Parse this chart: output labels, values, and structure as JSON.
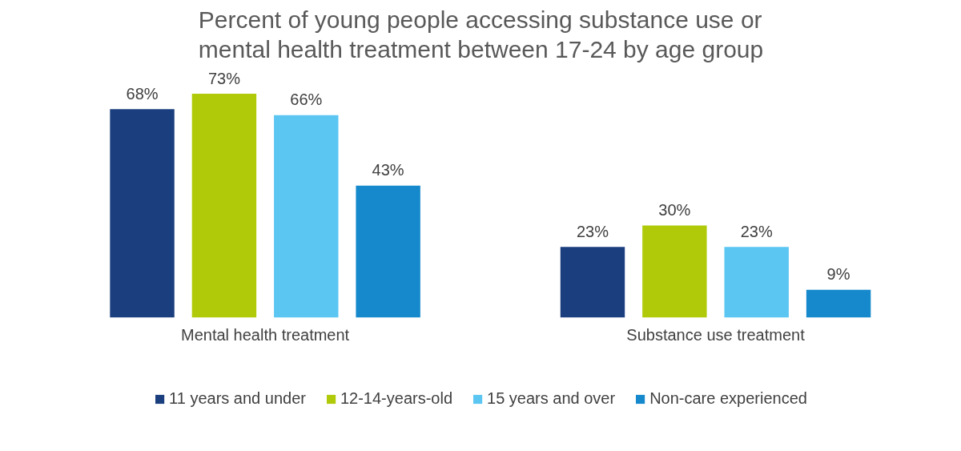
{
  "chart_data": {
    "type": "bar",
    "title": "Percent of young people accessing substance use or mental health treatment between 17-24 by age group",
    "categories": [
      "Mental health treatment",
      "Substance use treatment"
    ],
    "series": [
      {
        "name": "11 years and under",
        "color": "#1b3f7e",
        "values": [
          68,
          23
        ],
        "value_labels": [
          "68%",
          "23%"
        ]
      },
      {
        "name": "12-14-years-old",
        "color": "#b0ca0a",
        "values": [
          73,
          30
        ],
        "value_labels": [
          "73%",
          "30%"
        ]
      },
      {
        "name": "15 years and over",
        "color": "#5bc6f2",
        "values": [
          66,
          23
        ],
        "value_labels": [
          "66%",
          "23%"
        ]
      },
      {
        "name": "Non-care experienced",
        "color": "#1689cc",
        "values": [
          43,
          9
        ],
        "value_labels": [
          "43%",
          "9%"
        ]
      }
    ],
    "legend": "bottom"
  }
}
